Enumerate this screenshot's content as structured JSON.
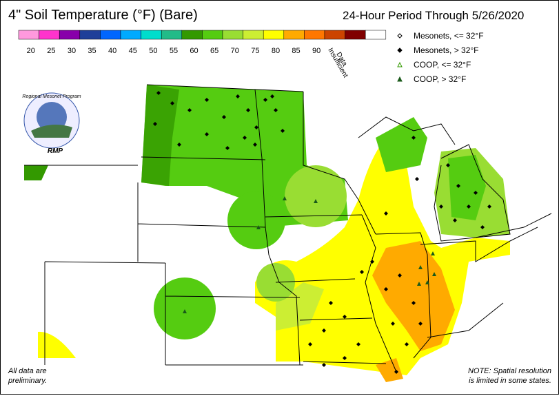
{
  "title": "4\" Soil Temperature (°F) (Bare)",
  "period": "24-Hour Period Through 5/26/2020",
  "color_scale": {
    "labels": [
      20,
      25,
      30,
      35,
      40,
      45,
      50,
      55,
      60,
      65,
      70,
      75,
      80,
      85,
      90
    ],
    "colors": [
      "#ff99dd",
      "#ff33cc",
      "#8800aa",
      "#1f3f99",
      "#0066ff",
      "#00aaff",
      "#00ddcc",
      "#22bb88",
      "#339900",
      "#55cc11",
      "#99dd33",
      "#ccee33",
      "#ffff00",
      "#ffaa00",
      "#ff7700",
      "#cc4400",
      "#800000",
      "#ffffff"
    ],
    "insufficient": [
      "Insufficient",
      "Data"
    ]
  },
  "legend": [
    "Mesonets, <= 32°F",
    "Mesonets, > 32°F",
    "COOP, <= 32°F",
    "COOP, > 32°F"
  ],
  "logo": {
    "name": "Regional Mesonet Program",
    "abbr": "RMP"
  },
  "notes": {
    "left": [
      "All data are",
      "preliminary."
    ],
    "right": [
      "NOTE: Spatial resolution",
      "is limited in some states."
    ]
  }
}
